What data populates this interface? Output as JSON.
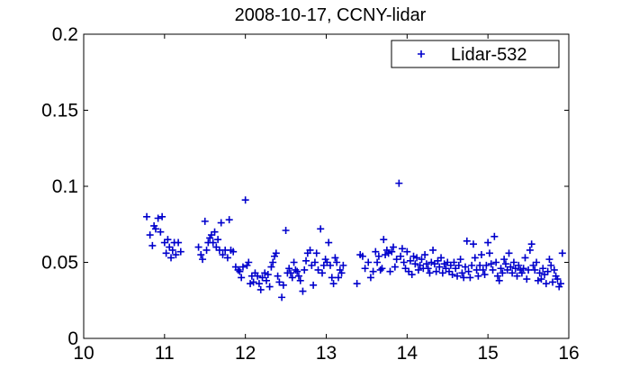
{
  "chart_data": {
    "type": "scatter",
    "title": "2008-10-17, CCNY-lidar",
    "xlabel": "",
    "ylabel": "",
    "xlim": [
      10,
      16
    ],
    "ylim": [
      0,
      0.2
    ],
    "x_ticks": [
      "10",
      "11",
      "12",
      "13",
      "14",
      "15",
      "16"
    ],
    "y_ticks": [
      "0",
      "0.05",
      "0.1",
      "0.15",
      "0.2"
    ],
    "grid": false,
    "legend_position": "top-right",
    "marker": "plus",
    "color": "#0000cc",
    "series": [
      {
        "name": "Lidar-532",
        "points": [
          [
            10.78,
            0.08
          ],
          [
            10.82,
            0.068
          ],
          [
            10.85,
            0.061
          ],
          [
            10.87,
            0.074
          ],
          [
            10.89,
            0.072
          ],
          [
            10.92,
            0.079
          ],
          [
            10.95,
            0.07
          ],
          [
            10.97,
            0.08
          ],
          [
            11.0,
            0.063
          ],
          [
            11.02,
            0.056
          ],
          [
            11.04,
            0.065
          ],
          [
            11.06,
            0.06
          ],
          [
            11.08,
            0.053
          ],
          [
            11.1,
            0.058
          ],
          [
            11.12,
            0.063
          ],
          [
            11.14,
            0.055
          ],
          [
            11.17,
            0.063
          ],
          [
            11.2,
            0.057
          ],
          [
            11.42,
            0.06
          ],
          [
            11.45,
            0.055
          ],
          [
            11.47,
            0.052
          ],
          [
            11.5,
            0.077
          ],
          [
            11.52,
            0.058
          ],
          [
            11.54,
            0.063
          ],
          [
            11.56,
            0.066
          ],
          [
            11.58,
            0.068
          ],
          [
            11.6,
            0.063
          ],
          [
            11.62,
            0.07
          ],
          [
            11.64,
            0.06
          ],
          [
            11.66,
            0.065
          ],
          [
            11.68,
            0.058
          ],
          [
            11.7,
            0.076
          ],
          [
            11.72,
            0.055
          ],
          [
            11.75,
            0.058
          ],
          [
            11.78,
            0.053
          ],
          [
            11.8,
            0.078
          ],
          [
            11.82,
            0.058
          ],
          [
            11.85,
            0.057
          ],
          [
            11.88,
            0.047
          ],
          [
            11.91,
            0.045
          ],
          [
            11.93,
            0.044
          ],
          [
            11.95,
            0.04
          ],
          [
            11.97,
            0.047
          ],
          [
            12.0,
            0.091
          ],
          [
            12.02,
            0.048
          ],
          [
            12.04,
            0.05
          ],
          [
            12.06,
            0.036
          ],
          [
            12.08,
            0.041
          ],
          [
            12.1,
            0.037
          ],
          [
            12.12,
            0.043
          ],
          [
            12.15,
            0.041
          ],
          [
            12.17,
            0.036
          ],
          [
            12.19,
            0.032
          ],
          [
            12.21,
            0.04
          ],
          [
            12.24,
            0.043
          ],
          [
            12.26,
            0.038
          ],
          [
            12.28,
            0.042
          ],
          [
            12.3,
            0.034
          ],
          [
            12.32,
            0.047
          ],
          [
            12.34,
            0.05
          ],
          [
            12.36,
            0.054
          ],
          [
            12.38,
            0.056
          ],
          [
            12.4,
            0.041
          ],
          [
            12.42,
            0.037
          ],
          [
            12.45,
            0.027
          ],
          [
            12.47,
            0.035
          ],
          [
            12.5,
            0.071
          ],
          [
            12.52,
            0.043
          ],
          [
            12.54,
            0.046
          ],
          [
            12.56,
            0.043
          ],
          [
            12.58,
            0.04
          ],
          [
            12.6,
            0.05
          ],
          [
            12.62,
            0.045
          ],
          [
            12.64,
            0.044
          ],
          [
            12.66,
            0.041
          ],
          [
            12.68,
            0.038
          ],
          [
            12.71,
            0.031
          ],
          [
            12.73,
            0.045
          ],
          [
            12.75,
            0.051
          ],
          [
            12.77,
            0.056
          ],
          [
            12.8,
            0.058
          ],
          [
            12.82,
            0.048
          ],
          [
            12.84,
            0.035
          ],
          [
            12.86,
            0.05
          ],
          [
            12.88,
            0.056
          ],
          [
            12.9,
            0.045
          ],
          [
            12.93,
            0.072
          ],
          [
            12.95,
            0.043
          ],
          [
            12.97,
            0.048
          ],
          [
            12.99,
            0.052
          ],
          [
            13.01,
            0.05
          ],
          [
            13.03,
            0.063
          ],
          [
            13.05,
            0.048
          ],
          [
            13.07,
            0.04
          ],
          [
            13.09,
            0.036
          ],
          [
            13.11,
            0.053
          ],
          [
            13.13,
            0.05
          ],
          [
            13.15,
            0.04
          ],
          [
            13.17,
            0.045
          ],
          [
            13.19,
            0.043
          ],
          [
            13.21,
            0.048
          ],
          [
            13.38,
            0.036
          ],
          [
            13.42,
            0.055
          ],
          [
            13.45,
            0.054
          ],
          [
            13.48,
            0.046
          ],
          [
            13.52,
            0.05
          ],
          [
            13.55,
            0.04
          ],
          [
            13.58,
            0.044
          ],
          [
            13.61,
            0.057
          ],
          [
            13.63,
            0.05
          ],
          [
            13.65,
            0.054
          ],
          [
            13.67,
            0.045
          ],
          [
            13.69,
            0.046
          ],
          [
            13.71,
            0.065
          ],
          [
            13.73,
            0.055
          ],
          [
            13.75,
            0.058
          ],
          [
            13.77,
            0.056
          ],
          [
            13.79,
            0.044
          ],
          [
            13.81,
            0.057
          ],
          [
            13.83,
            0.06
          ],
          [
            13.85,
            0.047
          ],
          [
            13.87,
            0.052
          ],
          [
            13.9,
            0.102
          ],
          [
            13.92,
            0.054
          ],
          [
            13.94,
            0.059
          ],
          [
            13.96,
            0.05
          ],
          [
            13.98,
            0.046
          ],
          [
            14.0,
            0.057
          ],
          [
            14.02,
            0.044
          ],
          [
            14.04,
            0.051
          ],
          [
            14.06,
            0.042
          ],
          [
            14.08,
            0.054
          ],
          [
            14.1,
            0.049
          ],
          [
            14.12,
            0.053
          ],
          [
            14.14,
            0.045
          ],
          [
            14.16,
            0.048
          ],
          [
            14.18,
            0.052
          ],
          [
            14.2,
            0.046
          ],
          [
            14.22,
            0.055
          ],
          [
            14.24,
            0.049
          ],
          [
            14.26,
            0.046
          ],
          [
            14.28,
            0.043
          ],
          [
            14.3,
            0.05
          ],
          [
            14.32,
            0.058
          ],
          [
            14.34,
            0.049
          ],
          [
            14.36,
            0.044
          ],
          [
            14.38,
            0.051
          ],
          [
            14.4,
            0.047
          ],
          [
            14.42,
            0.053
          ],
          [
            14.44,
            0.043
          ],
          [
            14.46,
            0.049
          ],
          [
            14.48,
            0.046
          ],
          [
            14.5,
            0.05
          ],
          [
            14.52,
            0.044
          ],
          [
            14.54,
            0.048
          ],
          [
            14.56,
            0.042
          ],
          [
            14.58,
            0.05
          ],
          [
            14.6,
            0.046
          ],
          [
            14.62,
            0.041
          ],
          [
            14.64,
            0.048
          ],
          [
            14.66,
            0.052
          ],
          [
            14.68,
            0.043
          ],
          [
            14.7,
            0.04
          ],
          [
            14.72,
            0.047
          ],
          [
            14.74,
            0.064
          ],
          [
            14.76,
            0.044
          ],
          [
            14.78,
            0.04
          ],
          [
            14.8,
            0.048
          ],
          [
            14.82,
            0.062
          ],
          [
            14.84,
            0.053
          ],
          [
            14.86,
            0.045
          ],
          [
            14.88,
            0.041
          ],
          [
            14.9,
            0.048
          ],
          [
            14.92,
            0.055
          ],
          [
            14.94,
            0.045
          ],
          [
            14.96,
            0.042
          ],
          [
            14.98,
            0.048
          ],
          [
            15.0,
            0.063
          ],
          [
            15.02,
            0.056
          ],
          [
            15.04,
            0.049
          ],
          [
            15.06,
            0.045
          ],
          [
            15.08,
            0.067
          ],
          [
            15.1,
            0.05
          ],
          [
            15.12,
            0.041
          ],
          [
            15.14,
            0.038
          ],
          [
            15.16,
            0.046
          ],
          [
            15.18,
            0.043
          ],
          [
            15.2,
            0.052
          ],
          [
            15.22,
            0.049
          ],
          [
            15.24,
            0.045
          ],
          [
            15.26,
            0.056
          ],
          [
            15.28,
            0.047
          ],
          [
            15.3,
            0.043
          ],
          [
            15.32,
            0.05
          ],
          [
            15.34,
            0.046
          ],
          [
            15.36,
            0.041
          ],
          [
            15.38,
            0.048
          ],
          [
            15.4,
            0.045
          ],
          [
            15.42,
            0.043
          ],
          [
            15.44,
            0.046
          ],
          [
            15.46,
            0.053
          ],
          [
            15.48,
            0.039
          ],
          [
            15.5,
            0.045
          ],
          [
            15.52,
            0.058
          ],
          [
            15.54,
            0.062
          ],
          [
            15.56,
            0.048
          ],
          [
            15.58,
            0.045
          ],
          [
            15.6,
            0.05
          ],
          [
            15.62,
            0.038
          ],
          [
            15.64,
            0.043
          ],
          [
            15.66,
            0.039
          ],
          [
            15.68,
            0.046
          ],
          [
            15.7,
            0.042
          ],
          [
            15.72,
            0.036
          ],
          [
            15.74,
            0.044
          ],
          [
            15.76,
            0.052
          ],
          [
            15.78,
            0.048
          ],
          [
            15.8,
            0.037
          ],
          [
            15.82,
            0.045
          ],
          [
            15.84,
            0.041
          ],
          [
            15.86,
            0.039
          ],
          [
            15.88,
            0.034
          ],
          [
            15.9,
            0.036
          ],
          [
            15.92,
            0.056
          ]
        ]
      }
    ]
  }
}
